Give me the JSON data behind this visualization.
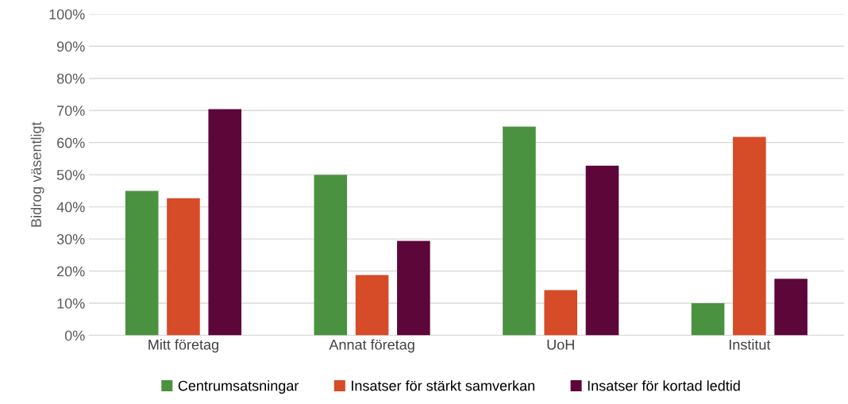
{
  "chart_data": {
    "type": "bar",
    "ylabel": "Bidrog väsentligt",
    "categories": [
      "Mitt företag",
      "Annat företag",
      "UoH",
      "Institut"
    ],
    "series": [
      {
        "name": "Centrumsatsningar",
        "color": "#4a9240",
        "values": [
          45,
          50,
          65,
          10
        ]
      },
      {
        "name": "Insatser för stärkt samverkan",
        "color": "#d64b28",
        "values": [
          42.7,
          18.8,
          14.1,
          61.8
        ]
      },
      {
        "name": "Insatser för kortad ledtid",
        "color": "#5c0639",
        "values": [
          70.4,
          29.4,
          52.8,
          17.6
        ]
      }
    ],
    "ylim": [
      0,
      100
    ],
    "yticks": [
      {
        "value": 0,
        "label": "0%"
      },
      {
        "value": 10,
        "label": "10%"
      },
      {
        "value": 20,
        "label": "20%"
      },
      {
        "value": 30,
        "label": "30%"
      },
      {
        "value": 40,
        "label": "40%"
      },
      {
        "value": 50,
        "label": "50%"
      },
      {
        "value": 60,
        "label": "60%"
      },
      {
        "value": 70,
        "label": "70%"
      },
      {
        "value": 80,
        "label": "80%"
      },
      {
        "value": 90,
        "label": "90%"
      },
      {
        "value": 100,
        "label": "100%"
      }
    ],
    "grid": "y",
    "legend": "bottom"
  }
}
